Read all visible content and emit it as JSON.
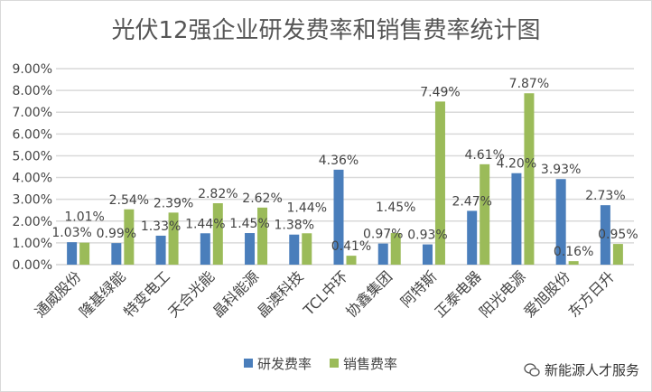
{
  "chart_data": {
    "type": "bar",
    "title": "光伏12强企业研发费率和销售费率统计图",
    "categories": [
      "通威股份",
      "隆基绿能",
      "特变电工",
      "天合光能",
      "晶科能源",
      "晶澳科技",
      "TCL中环",
      "协鑫集团",
      "阿特斯",
      "正泰电器",
      "阳光电源",
      "爱旭股份",
      "东方日升"
    ],
    "series": [
      {
        "name": "研发费率",
        "color": "#4a7ebb",
        "values": [
          1.03,
          0.99,
          1.33,
          1.44,
          1.45,
          1.38,
          4.36,
          0.97,
          0.93,
          2.47,
          4.2,
          3.93,
          2.73
        ]
      },
      {
        "name": "销售费率",
        "color": "#9bbb59",
        "values": [
          1.01,
          2.54,
          2.39,
          2.82,
          2.62,
          1.44,
          0.41,
          1.45,
          7.49,
          4.61,
          7.87,
          0.16,
          0.95
        ]
      }
    ],
    "ylim": [
      0,
      9
    ],
    "yticks": [
      "0.00%",
      "1.00%",
      "2.00%",
      "3.00%",
      "4.00%",
      "5.00%",
      "6.00%",
      "7.00%",
      "8.00%",
      "9.00%"
    ],
    "grid": true,
    "legend_position": "bottom",
    "data_labels": true
  },
  "watermark": {
    "text": "新能源人才服务",
    "icon": "wechat-icon"
  }
}
